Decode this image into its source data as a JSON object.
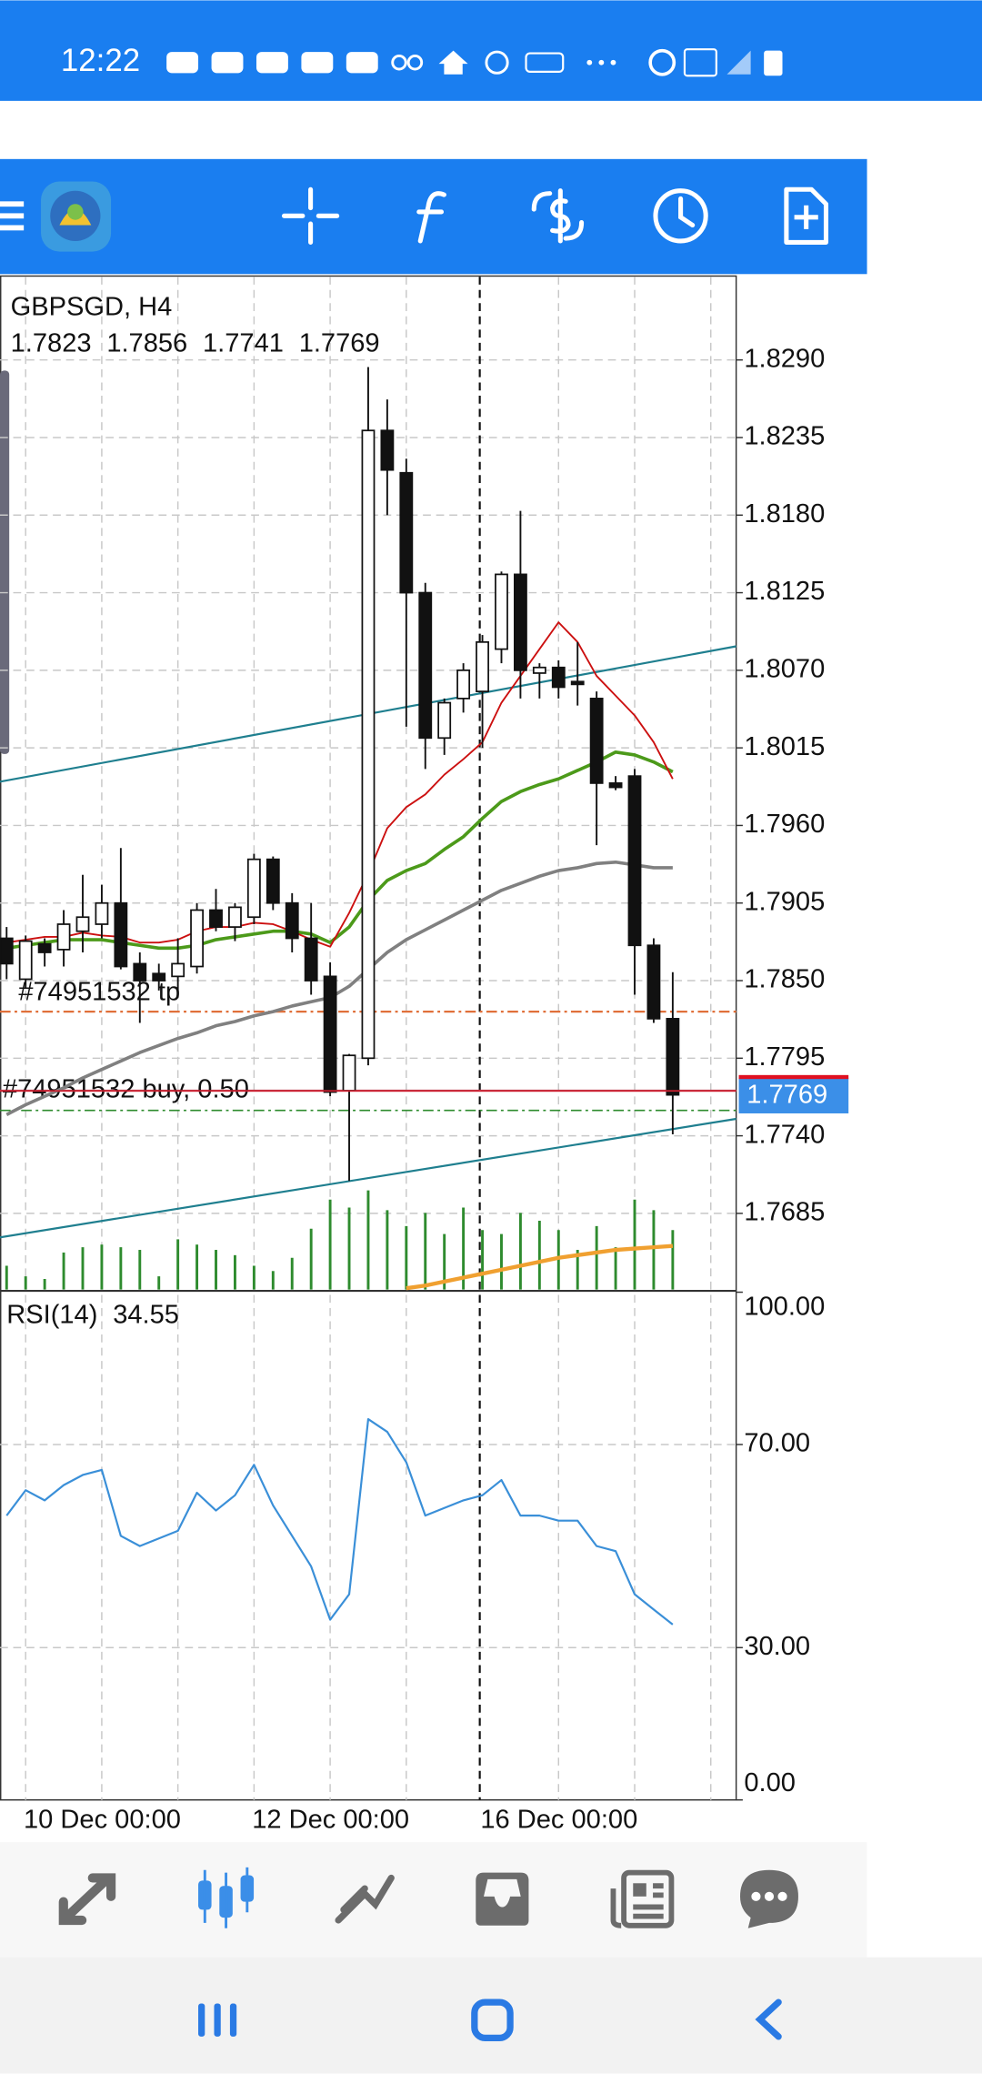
{
  "status_bar": {
    "time": "12:22"
  },
  "chart": {
    "symbol": "GBPSGD, H4",
    "ylim": [
      1.7631,
      1.8349
    ],
    "yticks": [
      {
        "value": 1.829,
        "label": "1.8290"
      },
      {
        "value": 1.8235,
        "label": "1.8235"
      },
      {
        "value": 1.818,
        "label": "1.8180"
      },
      {
        "value": 1.8125,
        "label": "1.8125"
      },
      {
        "value": 1.807,
        "label": "1.8070"
      },
      {
        "value": 1.8015,
        "label": "1.8015"
      },
      {
        "value": 1.796,
        "label": "1.7960"
      },
      {
        "value": 1.7905,
        "label": "1.7905"
      },
      {
        "value": 1.785,
        "label": "1.7850"
      },
      {
        "value": 1.7795,
        "label": "1.7795"
      },
      {
        "value": 1.774,
        "label": "1.7740"
      },
      {
        "value": 1.7685,
        "label": "1.7685"
      }
    ],
    "candles": [
      {
        "o": 1.788,
        "h": 1.7888,
        "l": 1.7851,
        "c": 1.7862
      },
      {
        "o": 1.7851,
        "h": 1.7882,
        "l": 1.7845,
        "c": 1.7878
      },
      {
        "o": 1.7876,
        "h": 1.788,
        "l": 1.786,
        "c": 1.787
      },
      {
        "o": 1.7872,
        "h": 1.79,
        "l": 1.786,
        "c": 1.789
      },
      {
        "o": 1.7885,
        "h": 1.7925,
        "l": 1.787,
        "c": 1.7895
      },
      {
        "o": 1.789,
        "h": 1.7918,
        "l": 1.788,
        "c": 1.7905
      },
      {
        "o": 1.7905,
        "h": 1.7944,
        "l": 1.7858,
        "c": 1.786
      },
      {
        "o": 1.7862,
        "h": 1.787,
        "l": 1.782,
        "c": 1.785
      },
      {
        "o": 1.7855,
        "h": 1.7862,
        "l": 1.7843,
        "c": 1.785
      },
      {
        "o": 1.7853,
        "h": 1.788,
        "l": 1.7838,
        "c": 1.7862
      },
      {
        "o": 1.786,
        "h": 1.7905,
        "l": 1.7855,
        "c": 1.79
      },
      {
        "o": 1.79,
        "h": 1.7915,
        "l": 1.7885,
        "c": 1.7888
      },
      {
        "o": 1.7888,
        "h": 1.7905,
        "l": 1.7878,
        "c": 1.7902
      },
      {
        "o": 1.7895,
        "h": 1.794,
        "l": 1.789,
        "c": 1.7936
      },
      {
        "o": 1.7936,
        "h": 1.7938,
        "l": 1.79,
        "c": 1.7905
      },
      {
        "o": 1.7905,
        "h": 1.7912,
        "l": 1.787,
        "c": 1.788
      },
      {
        "o": 1.788,
        "h": 1.7905,
        "l": 1.784,
        "c": 1.785
      },
      {
        "o": 1.7853,
        "h": 1.7863,
        "l": 1.7768,
        "c": 1.7771
      },
      {
        "o": 1.7772,
        "h": 1.7798,
        "l": 1.7708,
        "c": 1.7797
      },
      {
        "o": 1.7795,
        "h": 1.8285,
        "l": 1.779,
        "c": 1.824
      },
      {
        "o": 1.824,
        "h": 1.8262,
        "l": 1.818,
        "c": 1.8212
      },
      {
        "o": 1.821,
        "h": 1.822,
        "l": 1.803,
        "c": 1.8125
      },
      {
        "o": 1.8125,
        "h": 1.8132,
        "l": 1.8,
        "c": 1.8022
      },
      {
        "o": 1.8022,
        "h": 1.805,
        "l": 1.801,
        "c": 1.8047
      },
      {
        "o": 1.805,
        "h": 1.8075,
        "l": 1.804,
        "c": 1.807
      },
      {
        "o": 1.8055,
        "h": 1.8095,
        "l": 1.8015,
        "c": 1.809
      },
      {
        "o": 1.8085,
        "h": 1.814,
        "l": 1.8075,
        "c": 1.8138
      },
      {
        "o": 1.8138,
        "h": 1.8183,
        "l": 1.805,
        "c": 1.807
      },
      {
        "o": 1.8068,
        "h": 1.8075,
        "l": 1.805,
        "c": 1.8072
      },
      {
        "o": 1.8072,
        "h": 1.8077,
        "l": 1.805,
        "c": 1.8058
      },
      {
        "o": 1.8062,
        "h": 1.809,
        "l": 1.8045,
        "c": 1.806
      },
      {
        "o": 1.805,
        "h": 1.8055,
        "l": 1.7946,
        "c": 1.799
      },
      {
        "o": 1.799,
        "h": 1.7995,
        "l": 1.7985,
        "c": 1.7987
      },
      {
        "o": 1.7995,
        "h": 1.8,
        "l": 1.784,
        "c": 1.7875
      },
      {
        "o": 1.7875,
        "h": 1.788,
        "l": 1.782,
        "c": 1.7823
      },
      {
        "o": 1.7823,
        "h": 1.7856,
        "l": 1.7741,
        "c": 1.7769
      }
    ],
    "ma_red": [
      1.7877,
      1.7879,
      1.7881,
      1.7881,
      1.7884,
      1.7882,
      1.7881,
      1.7877,
      1.7877,
      1.7879,
      1.7885,
      1.7888,
      1.7888,
      1.7891,
      1.789,
      1.7885,
      1.7879,
      1.7874,
      1.7898,
      1.7926,
      1.7958,
      1.7973,
      1.7982,
      1.7996,
      1.8007,
      1.8019,
      1.8047,
      1.8066,
      1.8085,
      1.8104,
      1.809,
      1.8066,
      1.8052,
      1.8038,
      1.8019,
      1.7993
    ],
    "ma_green": [
      1.7873,
      1.7875,
      1.7877,
      1.7879,
      1.7879,
      1.7879,
      1.7877,
      1.7875,
      1.7873,
      1.7873,
      1.7875,
      1.7879,
      1.7881,
      1.7883,
      1.7885,
      1.7885,
      1.7883,
      1.7877,
      1.7888,
      1.7907,
      1.7921,
      1.7928,
      1.7933,
      1.7943,
      1.7952,
      1.7965,
      1.7977,
      1.7984,
      1.7989,
      1.7993,
      1.7999,
      1.8005,
      1.8012,
      1.801,
      1.8005,
      1.7998
    ],
    "ma_gray": [
      1.7755,
      1.7762,
      1.7768,
      1.7774,
      1.7781,
      1.7787,
      1.7793,
      1.7799,
      1.7804,
      1.7809,
      1.7813,
      1.7818,
      1.7821,
      1.7825,
      1.7828,
      1.7832,
      1.7835,
      1.7838,
      1.7846,
      1.7858,
      1.787,
      1.7879,
      1.7886,
      1.7893,
      1.79,
      1.7907,
      1.7914,
      1.7919,
      1.7924,
      1.7928,
      1.793,
      1.7933,
      1.7934,
      1.7932,
      1.793,
      1.793
    ],
    "trendlines": [
      {
        "start": 1.7991,
        "end": 1.8087
      },
      {
        "start": 1.7668,
        "end": 1.7752
      }
    ],
    "orders": [
      {
        "label": "#74951532 tp",
        "price": 1.7828,
        "color": "#e0703a"
      },
      {
        "label": "#74951532 buy, 0.50",
        "price": 1.7772,
        "color": "#b05060"
      }
    ],
    "ask": 1.7758,
    "volume": [
      18,
      10,
      8,
      28,
      32,
      34,
      32,
      30,
      10,
      38,
      34,
      30,
      26,
      18,
      14,
      24,
      46,
      68,
      62,
      75,
      60,
      48,
      58,
      42,
      62,
      45,
      42,
      58,
      52,
      45,
      30,
      48,
      32,
      68,
      60,
      45
    ],
    "volume_ma": [
      null,
      null,
      null,
      null,
      null,
      null,
      null,
      null,
      null,
      null,
      null,
      null,
      null,
      null,
      null,
      null,
      null,
      null,
      null,
      null,
      null,
      1,
      3,
      6,
      9,
      12,
      15,
      18,
      21,
      24,
      26,
      28,
      30,
      31,
      32,
      33
    ],
    "time_labels": [
      "10 Dec 00:00",
      "12 Dec 00:00",
      "16 Dec 00:00"
    ],
    "rsi": {
      "label": "RSI(14)",
      "ylim": [
        0,
        100
      ],
      "yticks": [
        {
          "value": 100,
          "label": "100.00"
        },
        {
          "value": 70,
          "label": "70.00"
        },
        {
          "value": 30,
          "label": "30.00"
        },
        {
          "value": 0,
          "label": "0.00"
        }
      ],
      "values": [
        56,
        61,
        59,
        62,
        64,
        65,
        52,
        50,
        51.5,
        53,
        60.5,
        57,
        60,
        66,
        58,
        52,
        46,
        35.5,
        40.5,
        75,
        72.5,
        66.5,
        56,
        57.5,
        59,
        60,
        63,
        56,
        56,
        55,
        55,
        50,
        49,
        40.5,
        37.5,
        34.55
      ]
    }
  }
}
